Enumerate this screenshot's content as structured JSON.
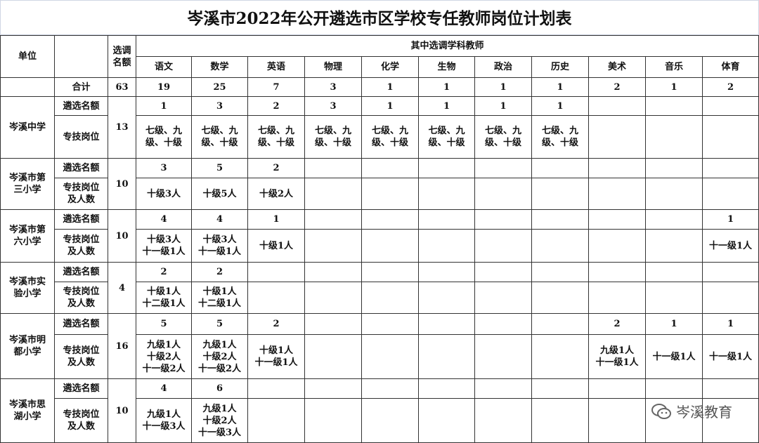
{
  "title": "岑溪市2022年公开遴选市区学校专任教师岗位计划表",
  "header": {
    "unit": "单位",
    "quota": "选调\n名额",
    "group": "其中选调学科教师",
    "subjects": [
      "语文",
      "数学",
      "英语",
      "物理",
      "化学",
      "生物",
      "政治",
      "历史",
      "美术",
      "音乐",
      "体育"
    ]
  },
  "total": {
    "label": "合计",
    "quota": "63",
    "counts": [
      "19",
      "25",
      "7",
      "3",
      "1",
      "1",
      "1",
      "1",
      "2",
      "1",
      "2"
    ]
  },
  "schools": [
    {
      "name": "岑溪中学",
      "row1": "遴选名额",
      "row2": "专技岗位",
      "quota": "13",
      "counts": [
        "1",
        "3",
        "2",
        "3",
        "1",
        "1",
        "1",
        "1",
        "",
        "",
        ""
      ],
      "posts": [
        "七级、九\n级、十级",
        "七级、九\n级、十级",
        "七级、九\n级、十级",
        "七级、九\n级、十级",
        "七级、九\n级、十级",
        "七级、九\n级、十级",
        "七级、九\n级、十级",
        "七级、九\n级、十级",
        "",
        "",
        ""
      ]
    },
    {
      "name": "岑溪市第\n三小学",
      "row1": "遴选名额",
      "row2": "专技岗位\n及人数",
      "quota": "10",
      "counts": [
        "3",
        "5",
        "2",
        "",
        "",
        "",
        "",
        "",
        "",
        "",
        ""
      ],
      "posts": [
        "十级3人",
        "十级5人",
        "十级2人",
        "",
        "",
        "",
        "",
        "",
        "",
        "",
        ""
      ]
    },
    {
      "name": "岑溪市第\n六小学",
      "row1": "遴选名额",
      "row2": "专技岗位\n及人数",
      "quota": "10",
      "counts": [
        "4",
        "4",
        "1",
        "",
        "",
        "",
        "",
        "",
        "",
        "",
        "1"
      ],
      "posts": [
        "十级3人\n十一级1人",
        "十级3人\n十一级1人",
        "十级1人",
        "",
        "",
        "",
        "",
        "",
        "",
        "",
        "十一级1人"
      ]
    },
    {
      "name": "岑溪市实\n验小学",
      "row1": "遴选名额",
      "row2": "专技岗位\n及人数",
      "quota": "4",
      "counts": [
        "2",
        "2",
        "",
        "",
        "",
        "",
        "",
        "",
        "",
        "",
        ""
      ],
      "posts": [
        "十级1人\n十二级1人",
        "十级1人\n十二级1人",
        "",
        "",
        "",
        "",
        "",
        "",
        "",
        "",
        ""
      ]
    },
    {
      "name": "岑溪市明\n都小学",
      "row1": "遴选名额",
      "row2": "专技岗位\n及人数",
      "quota": "16",
      "counts": [
        "5",
        "5",
        "2",
        "",
        "",
        "",
        "",
        "",
        "2",
        "1",
        "1"
      ],
      "posts": [
        "九级1人\n十级2人\n十一级2人",
        "九级1人\n十级2人\n十一级2人",
        "十级1人\n十一级1人",
        "",
        "",
        "",
        "",
        "",
        "九级1人\n十一级1人",
        "十一级1人",
        "十一级1人"
      ]
    },
    {
      "name": "岑溪市思\n湖小学",
      "row1": "遴选名额",
      "row2": "专技岗位\n及人数",
      "quota": "10",
      "counts": [
        "4",
        "6",
        "",
        "",
        "",
        "",
        "",
        "",
        "",
        "",
        ""
      ],
      "posts": [
        "九级1人\n十一级3人",
        "九级1人\n十级2人\n十一级3人",
        "",
        "",
        "",
        "",
        "",
        "",
        "",
        "",
        ""
      ]
    }
  ],
  "watermark": "岑溪教育",
  "watermark_icon": "wechat-icon"
}
